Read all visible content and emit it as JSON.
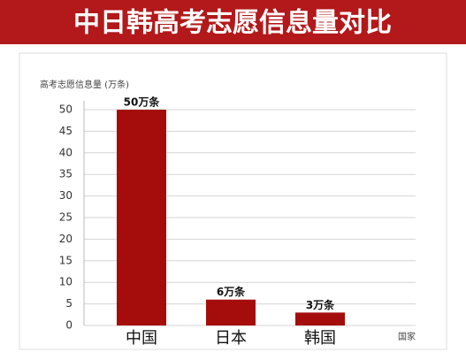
{
  "chart_data": {
    "type": "bar",
    "title": "中日韩高考志愿信息量对比",
    "y_label": "高考志愿信息量 (万条)",
    "x_label": "国家",
    "categories": [
      "中国",
      "日本",
      "韩国"
    ],
    "values": [
      50,
      6,
      3
    ],
    "value_labels": [
      "50万条",
      "6万条",
      "3万条"
    ],
    "color": "#a50d0d",
    "ylim": [
      0,
      50
    ],
    "yticks": [
      0,
      5,
      10,
      15,
      20,
      25,
      30,
      35,
      40,
      45,
      50
    ],
    "grid": true
  }
}
